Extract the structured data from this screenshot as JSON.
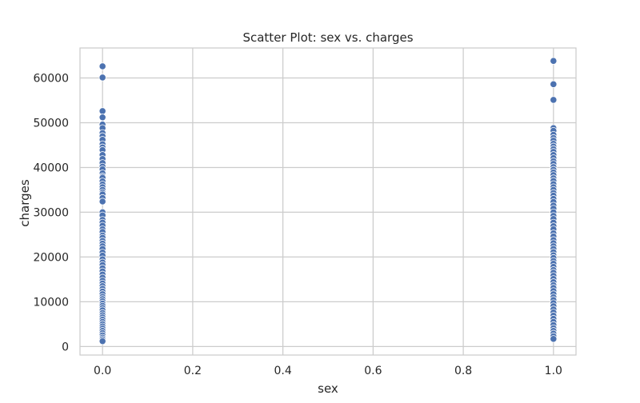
{
  "chart_data": {
    "type": "scatter",
    "title": "Scatter Plot: sex vs. charges",
    "xlabel": "sex",
    "ylabel": "charges",
    "xlim": [
      -0.05,
      1.05
    ],
    "ylim": [
      -1900,
      66700
    ],
    "xticks": [
      0.0,
      0.2,
      0.4,
      0.6,
      0.8,
      1.0
    ],
    "xtick_labels": [
      "0.0",
      "0.2",
      "0.4",
      "0.6",
      "0.8",
      "1.0"
    ],
    "yticks": [
      0,
      10000,
      20000,
      30000,
      40000,
      50000,
      60000
    ],
    "ytick_labels": [
      "0",
      "10000",
      "20000",
      "30000",
      "40000",
      "50000",
      "60000"
    ],
    "grid": true,
    "marker_color": "#4c72b0",
    "grid_color": "#cccccc",
    "series": [
      {
        "x": 0,
        "y": [
          62600,
          60100,
          52600,
          51200,
          49600,
          48800,
          47700,
          47000,
          46200,
          45200,
          44500,
          43900,
          42800,
          41900,
          41000,
          40200,
          39600,
          38700,
          38000,
          37700,
          36900,
          36200,
          35600,
          35000,
          34400,
          34000,
          33200,
          32400,
          30000,
          29300,
          28300,
          27700,
          27000,
          26200,
          25600,
          24800,
          24300,
          23600,
          23000,
          22400,
          21800,
          21000,
          20300,
          19500,
          18800,
          18200,
          17500,
          16800,
          16100,
          15400,
          14700,
          14100,
          13500,
          12900,
          12300,
          11700,
          11100,
          10600,
          10100,
          9600,
          9100,
          8600,
          8100,
          7500,
          7000,
          6500,
          6000,
          5500,
          5000,
          4500,
          4000,
          3500,
          3000,
          2500,
          2000,
          1600,
          1200
        ]
      },
      {
        "x": 1,
        "y": [
          63800,
          58600,
          55100,
          48800,
          48200,
          47300,
          46600,
          46000,
          45300,
          44700,
          44100,
          43500,
          42800,
          42100,
          41400,
          40800,
          40100,
          39500,
          38900,
          38300,
          37600,
          37000,
          36300,
          35600,
          35000,
          34300,
          33700,
          33000,
          32300,
          31500,
          30800,
          30000,
          29200,
          28500,
          27700,
          26900,
          26200,
          25300,
          24600,
          23800,
          23100,
          22400,
          21800,
          21100,
          20400,
          19800,
          19100,
          18500,
          17800,
          17100,
          16500,
          15800,
          15100,
          14400,
          13700,
          13100,
          12400,
          11700,
          11000,
          10400,
          9700,
          9000,
          8300,
          7600,
          6900,
          6200,
          5500,
          4800,
          4100,
          3500,
          2900,
          2300,
          1700
        ]
      }
    ]
  }
}
